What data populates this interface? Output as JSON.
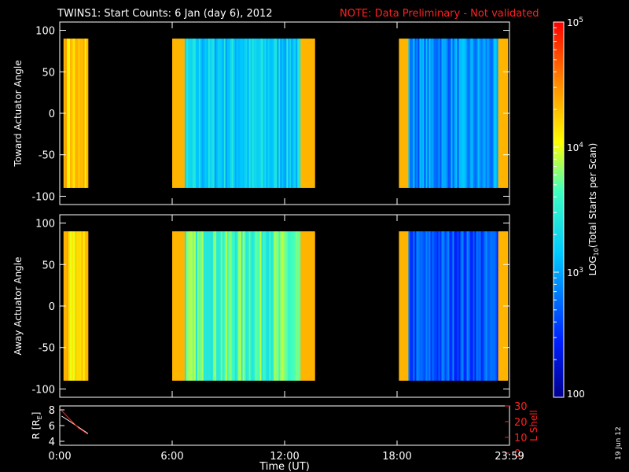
{
  "header": {
    "title": "TWINS1: Start Counts:  6 Jan (day   6), 2012",
    "note": "NOTE: Data Preliminary - Not validated"
  },
  "side_date": "19 Jun 12",
  "colors": {
    "background": "#000000",
    "axes": "#ffffff",
    "note": "#ff2020",
    "lshell": "#ff2020"
  },
  "chart_data": [
    {
      "type": "heatmap",
      "ylabel": "Toward Actuator Angle",
      "x_unit": "hours UT",
      "xlim": [
        0,
        24
      ],
      "ylim": [
        -110,
        110
      ],
      "yticks": [
        100,
        50,
        0,
        -50,
        -100
      ],
      "angle_range": [
        -90,
        90
      ],
      "segments": [
        {
          "start": 0.2,
          "end": 1.5,
          "level": 0.74
        },
        {
          "start": 6.0,
          "end": 13.6,
          "level": 0.4
        },
        {
          "start": 18.1,
          "end": 23.9,
          "level": 0.3
        }
      ]
    },
    {
      "type": "heatmap",
      "ylabel": "Away Actuator Angle",
      "x_unit": "hours UT",
      "xlim": [
        0,
        24
      ],
      "ylim": [
        -110,
        110
      ],
      "yticks": [
        100,
        50,
        0,
        -50,
        -100
      ],
      "angle_range": [
        -90,
        90
      ],
      "segments": [
        {
          "start": 0.2,
          "end": 1.5,
          "level": 0.72
        },
        {
          "start": 6.0,
          "end": 13.6,
          "level": 0.55
        },
        {
          "start": 18.1,
          "end": 23.9,
          "level": 0.22
        }
      ]
    },
    {
      "type": "line",
      "ylabel_left": "R [R",
      "ylabel_left_sub": "E",
      "ylabel_left_end": "]",
      "ylabel_right": "L Shell",
      "ylim_left": [
        3.5,
        8.5
      ],
      "yticks_left": [
        8,
        6,
        4
      ],
      "ylim_right": [
        5,
        30
      ],
      "yticks_right": [
        30,
        20,
        10,
        0
      ],
      "yticks_right_labels": [
        "30",
        "20",
        "10",
        "0"
      ],
      "series": [
        {
          "axis": "left",
          "color": "#ffffff",
          "x": [
            0.1,
            0.5,
            1.0,
            1.5
          ],
          "y": [
            7.2,
            6.6,
            5.8,
            5.0
          ]
        },
        {
          "axis": "right",
          "color": "#ff2020",
          "x": [
            0.1,
            0.5,
            1.0,
            1.5
          ],
          "y": [
            27,
            22,
            16,
            12
          ]
        }
      ],
      "xticks": [
        0,
        6,
        12,
        18,
        24
      ],
      "xtick_labels": [
        "0:00",
        "6:00",
        "12:00",
        "18:00",
        "23:59"
      ],
      "xlabel": "Time (UT)"
    }
  ],
  "colorbar": {
    "scale": "log",
    "range": [
      100,
      100000
    ],
    "tick_labels": [
      {
        "base": "10",
        "exp": "5",
        "value": 100000
      },
      {
        "base": "10",
        "exp": "4",
        "value": 10000
      },
      {
        "base": "10",
        "exp": "3",
        "value": 1000
      },
      {
        "base": "100",
        "exp": "",
        "value": 100
      }
    ],
    "label_prefix": "LOG",
    "label_sub": "10",
    "label_suffix": "(Total Starts per Scan)"
  }
}
